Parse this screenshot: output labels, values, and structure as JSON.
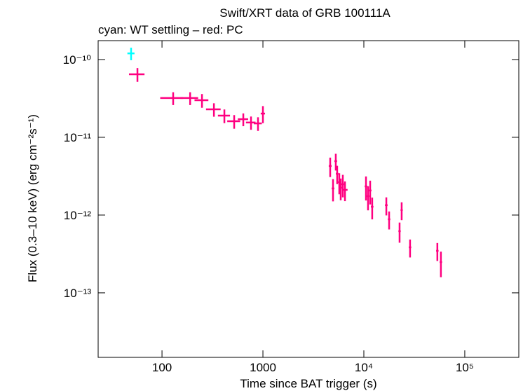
{
  "chart_data": {
    "type": "errorbar_scatter",
    "title": "Swift/XRT data of GRB 100111A",
    "subtitle": "cyan: WT settling – red: PC",
    "x_label": "Time since BAT trigger (s)",
    "y_label": "Flux (0.3–10 keV) (erg cm⁻²s⁻¹)",
    "xscale": "log",
    "yscale": "log",
    "xlim": [
      23.3,
      343000
    ],
    "ylim": [
      1.48e-14,
      1.75e-10
    ],
    "xticks": [
      100,
      1000,
      {
        "value": 10000,
        "label": "10⁴"
      },
      {
        "value": 100000,
        "label": "10⁵"
      }
    ],
    "yticks": [
      {
        "value": 1e-10,
        "label": "10⁻¹⁰"
      },
      {
        "value": 1e-11,
        "label": "10⁻¹¹"
      },
      {
        "value": 1e-12,
        "label": "10⁻¹²"
      },
      {
        "value": 1e-13,
        "label": "10⁻¹³"
      }
    ],
    "series": [
      {
        "name": "WT settling",
        "color": "#00ffff",
        "x": [
          49.4
        ],
        "xerr": [
          4
        ],
        "y": [
          1.2e-10
        ],
        "yerr": [
          2.2e-11
        ]
      },
      {
        "name": "PC",
        "color": "#ff0080",
        "x": [
          57.1,
          129,
          190,
          249,
          327,
          415,
          519,
          639,
          762,
          894,
          1000,
          4640,
          4950,
          5270,
          5440,
          5710,
          5900,
          6190,
          6500,
          10500,
          11000,
          11550,
          12100,
          16700,
          17800,
          22600,
          23700,
          28700,
          53500,
          58000
        ],
        "xerr": [
          10,
          33,
          38,
          39,
          54,
          57,
          76,
          75,
          83,
          82,
          49,
          150,
          150,
          160,
          160,
          170,
          180,
          190,
          400,
          300,
          300,
          350,
          350,
          500,
          500,
          600,
          600,
          800,
          1500,
          1600
        ],
        "y": [
          6.47e-11,
          3.2e-11,
          3.2e-11,
          3e-11,
          2.29e-11,
          1.9e-11,
          1.61e-11,
          1.71e-11,
          1.55e-11,
          1.51e-11,
          2.02e-11,
          4.28e-12,
          2.2e-12,
          4.94e-12,
          3.4e-12,
          2.65e-12,
          2.25e-12,
          2.49e-12,
          2.11e-12,
          2.34e-12,
          1.75e-12,
          2.07e-12,
          1.28e-12,
          1.34e-12,
          8.83e-13,
          6.21e-13,
          1.16e-12,
          3.85e-13,
          3.47e-13,
          2.49e-13
        ],
        "yerr": [
          1.3e-11,
          6e-12,
          6e-12,
          6e-12,
          4.5e-12,
          3.8e-12,
          3.2e-12,
          3.2e-12,
          3e-12,
          3e-12,
          5e-12,
          1.2e-12,
          7e-13,
          1.2e-12,
          9e-13,
          8e-13,
          7e-13,
          8e-13,
          6e-13,
          8e-13,
          6e-13,
          7e-13,
          4e-13,
          3.5e-13,
          2.3e-13,
          1.8e-13,
          3e-13,
          1e-13,
          9e-14,
          9e-14
        ]
      }
    ]
  }
}
